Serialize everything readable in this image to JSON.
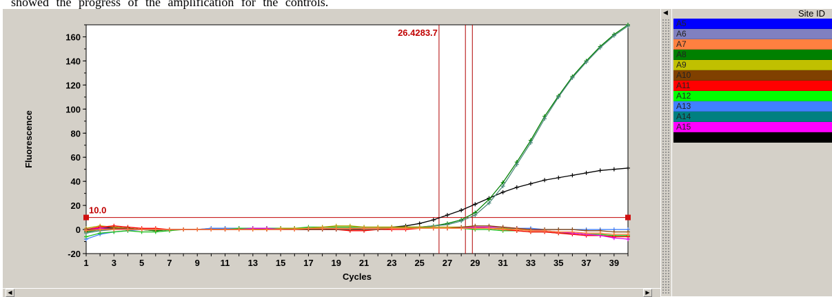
{
  "caption": "showed the progress of the amplification for the controls.",
  "chart_data": {
    "type": "line",
    "xlabel": "Cycles",
    "ylabel": "Fluorescence",
    "xlim": [
      1,
      40
    ],
    "ylim": [
      -20,
      170
    ],
    "x_ticks": [
      1,
      3,
      5,
      7,
      9,
      11,
      13,
      15,
      17,
      19,
      21,
      23,
      25,
      27,
      29,
      31,
      33,
      35,
      37,
      39
    ],
    "y_ticks": [
      -20,
      0,
      20,
      40,
      60,
      80,
      100,
      120,
      140,
      160
    ],
    "threshold": {
      "value": 10.0,
      "label": "10.0"
    },
    "ct_markers": {
      "values": [
        26.4,
        28.3,
        28.8
      ],
      "label": "26.4283.7"
    },
    "grid": false,
    "x": [
      1,
      2,
      3,
      4,
      5,
      6,
      7,
      8,
      9,
      10,
      11,
      12,
      13,
      14,
      15,
      16,
      17,
      18,
      19,
      20,
      21,
      22,
      23,
      24,
      25,
      26,
      27,
      28,
      29,
      30,
      31,
      32,
      33,
      34,
      35,
      36,
      37,
      38,
      39,
      40
    ],
    "series": [
      {
        "color": "#000000",
        "values": [
          -1,
          1,
          2,
          1,
          0,
          -1,
          0,
          0,
          0,
          0,
          0,
          0,
          0,
          0,
          1,
          0,
          0,
          1,
          0,
          0,
          1,
          1,
          2,
          3,
          5,
          8,
          12,
          16,
          21,
          26,
          31,
          35,
          38,
          41,
          43,
          45,
          47,
          49,
          50,
          51
        ]
      },
      {
        "color": "#008000",
        "values": [
          -2,
          0,
          1,
          0,
          0,
          -1,
          0,
          0,
          0,
          0,
          1,
          0,
          0,
          1,
          1,
          1,
          0,
          1,
          1,
          1,
          1,
          1,
          1,
          2,
          2,
          3,
          5,
          8,
          14,
          25,
          39,
          56,
          74,
          94,
          111,
          127,
          140,
          152,
          162,
          170
        ]
      },
      {
        "color": "#4a8a7a",
        "values": [
          -3,
          -1,
          0,
          0,
          0,
          0,
          0,
          0,
          0,
          1,
          1,
          1,
          1,
          1,
          1,
          1,
          1,
          1,
          1,
          1,
          1,
          1,
          2,
          2,
          2,
          3,
          4,
          7,
          12,
          22,
          36,
          54,
          72,
          92,
          110,
          126,
          139,
          151,
          161,
          169
        ]
      },
      {
        "color": "#4080ff",
        "values": [
          -8,
          -4,
          -2,
          -1,
          0,
          0,
          0,
          0,
          0,
          1,
          1,
          1,
          1,
          1,
          1,
          1,
          1,
          1,
          1,
          1,
          1,
          1,
          1,
          1,
          1,
          1,
          1,
          1,
          1,
          1,
          1,
          1,
          1,
          0,
          0,
          0,
          0,
          0,
          0,
          0
        ]
      },
      {
        "color": "#20c020",
        "values": [
          -6,
          -3,
          -2,
          -1,
          -2,
          -2,
          -1,
          0,
          0,
          0,
          0,
          1,
          1,
          1,
          1,
          1,
          2,
          2,
          2,
          2,
          2,
          2,
          2,
          2,
          2,
          1,
          1,
          1,
          0,
          0,
          -1,
          -1,
          -2,
          -2,
          -3,
          -3,
          -4,
          -4,
          -5,
          -5
        ]
      },
      {
        "color": "#b0a000",
        "values": [
          1,
          3,
          2,
          1,
          0,
          0,
          0,
          0,
          0,
          0,
          0,
          0,
          0,
          0,
          1,
          1,
          1,
          2,
          3,
          3,
          2,
          2,
          2,
          2,
          2,
          2,
          2,
          2,
          2,
          1,
          1,
          0,
          0,
          -1,
          -2,
          -3,
          -4,
          -5,
          -6,
          -6
        ]
      },
      {
        "color": "#ff0000",
        "values": [
          0,
          2,
          3,
          2,
          1,
          1,
          0,
          0,
          0,
          0,
          0,
          0,
          0,
          0,
          0,
          0,
          0,
          0,
          0,
          -1,
          -1,
          0,
          0,
          0,
          1,
          1,
          1,
          1,
          1,
          1,
          0,
          -1,
          -2,
          -2,
          -3,
          -4,
          -5,
          -5,
          -6,
          -6
        ]
      },
      {
        "color": "#e000e0",
        "values": [
          0,
          1,
          1,
          0,
          0,
          0,
          0,
          0,
          0,
          0,
          0,
          0,
          1,
          1,
          0,
          0,
          0,
          0,
          0,
          0,
          0,
          0,
          1,
          1,
          1,
          1,
          1,
          1,
          2,
          2,
          2,
          1,
          0,
          -1,
          -2,
          -3,
          -4,
          -5,
          -7,
          -8
        ]
      },
      {
        "color": "#8a4a10",
        "values": [
          0,
          0,
          1,
          1,
          0,
          0,
          0,
          0,
          0,
          0,
          0,
          0,
          0,
          0,
          0,
          0,
          0,
          0,
          0,
          0,
          0,
          0,
          1,
          1,
          1,
          1,
          1,
          2,
          3,
          3,
          2,
          1,
          0,
          0,
          0,
          0,
          -1,
          -1,
          -2,
          -2
        ]
      },
      {
        "color": "#ff8040",
        "values": [
          -1,
          0,
          0,
          0,
          0,
          0,
          0,
          0,
          0,
          0,
          0,
          0,
          0,
          0,
          0,
          0,
          1,
          1,
          1,
          1,
          1,
          1,
          1,
          1,
          1,
          1,
          1,
          1,
          1,
          1,
          0,
          0,
          -1,
          -1,
          -2,
          -2,
          -3,
          -3,
          -4,
          -4
        ]
      }
    ]
  },
  "legend": {
    "header": "Site ID",
    "items": [
      {
        "label": "A5",
        "color": "#0000ff"
      },
      {
        "label": "A6",
        "color": "#8080c0"
      },
      {
        "label": "A7",
        "color": "#ff8040"
      },
      {
        "label": "A8",
        "color": "#008000"
      },
      {
        "label": "A9",
        "color": "#c0c000"
      },
      {
        "label": "A10",
        "color": "#804000"
      },
      {
        "label": "A11",
        "color": "#ff0000"
      },
      {
        "label": "A12",
        "color": "#00ff00"
      },
      {
        "label": "A13",
        "color": "#4080ff"
      },
      {
        "label": "A14",
        "color": "#008080"
      },
      {
        "label": "A15",
        "color": "#ff00ff"
      },
      {
        "label": "",
        "color": "#000000"
      }
    ]
  },
  "scroll": {
    "left_icon": "scroll-left-arrow-icon",
    "right_icon": "scroll-right-arrow-icon"
  }
}
